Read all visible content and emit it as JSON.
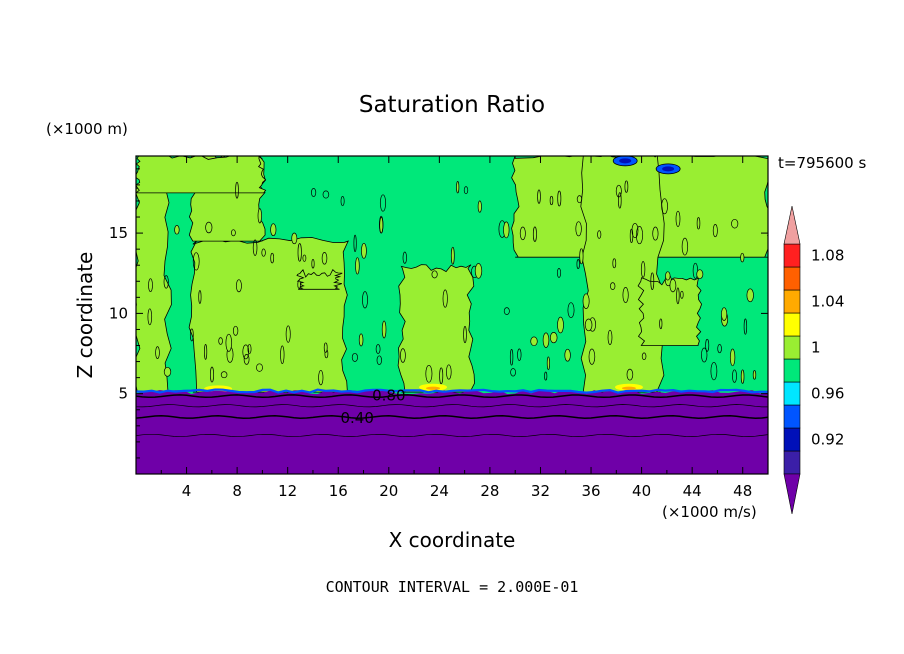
{
  "chart_data": {
    "type": "contour",
    "title": "Saturation Ratio",
    "xlabel": "X coordinate",
    "ylabel": "Z coordinate",
    "x_unit": "(×1000 m/s)",
    "y_unit": "(×1000 m)",
    "time_label": "t=795600 s",
    "footer": "CONTOUR INTERVAL = 2.000E-01",
    "xlim": [
      0,
      50
    ],
    "ylim": [
      0,
      19.8
    ],
    "x_ticks": [
      4,
      8,
      12,
      16,
      20,
      24,
      28,
      32,
      36,
      40,
      44,
      48
    ],
    "y_ticks": [
      5,
      10,
      15
    ],
    "contour_labels": [
      {
        "text": "0.80",
        "x": 20.0,
        "y": 4.9
      },
      {
        "text": "0.40",
        "x": 17.5,
        "y": 3.5
      }
    ],
    "contour_lines": [
      {
        "level": 0.8,
        "z": 4.85,
        "weight": "bold"
      },
      {
        "level": 0.6,
        "z": 4.25,
        "weight": "thin"
      },
      {
        "level": 0.4,
        "z": 3.55,
        "weight": "bold"
      },
      {
        "level": 0.2,
        "z": 2.4,
        "weight": "thin"
      }
    ],
    "regions": {
      "dry_layer": {
        "z_top": 5.1,
        "value": "<0.90"
      },
      "background": {
        "value": "1.00-1.02"
      },
      "moist_patches": {
        "value": "1.02-1.04"
      },
      "patches": [
        {
          "x": [
            0,
            2.5
          ],
          "z": [
            5.1,
            17.8
          ]
        },
        {
          "x": [
            4.5,
            16.5
          ],
          "z": [
            5.1,
            14.5
          ]
        },
        {
          "x": [
            4.5,
            10.0
          ],
          "z": [
            14.5,
            19.8
          ]
        },
        {
          "x": [
            0,
            10.0
          ],
          "z": [
            17.5,
            19.8
          ]
        },
        {
          "x": [
            13.0,
            16.0
          ],
          "z": [
            11.5,
            12.5
          ]
        },
        {
          "x": [
            21.0,
            26.5
          ],
          "z": [
            5.1,
            12.8
          ]
        },
        {
          "x": [
            30.0,
            50.0
          ],
          "z": [
            13.5,
            19.8
          ]
        },
        {
          "x": [
            35.5,
            41.5
          ],
          "z": [
            5.1,
            19.8
          ]
        },
        {
          "x": [
            40.0,
            44.5
          ],
          "z": [
            8.0,
            12.0
          ]
        }
      ],
      "supersaturated_spots": [
        {
          "x": 6.5,
          "z": 5.3,
          "value": "1.04-1.06"
        },
        {
          "x": 23.5,
          "z": 5.4,
          "value": "1.04-1.06"
        },
        {
          "x": 39.0,
          "z": 5.4,
          "value": "1.04-1.06"
        }
      ],
      "low_spots": [
        {
          "x": 38.7,
          "z": 19.5,
          "value": "0.92-0.94"
        },
        {
          "x": 42.1,
          "z": 19.0,
          "value": "0.92-0.94"
        }
      ]
    },
    "colorbar": {
      "levels": [
        "0.92",
        "0.96",
        "1",
        "1.04",
        "1.08"
      ],
      "colors": [
        "#6f00a8",
        "#3b1fa8",
        "#0010b8",
        "#0055ff",
        "#00e6ff",
        "#00e87a",
        "#99ee32",
        "#ffff00",
        "#ffaa00",
        "#ff6000",
        "#ff2020",
        "#f0a0a0"
      ]
    }
  }
}
